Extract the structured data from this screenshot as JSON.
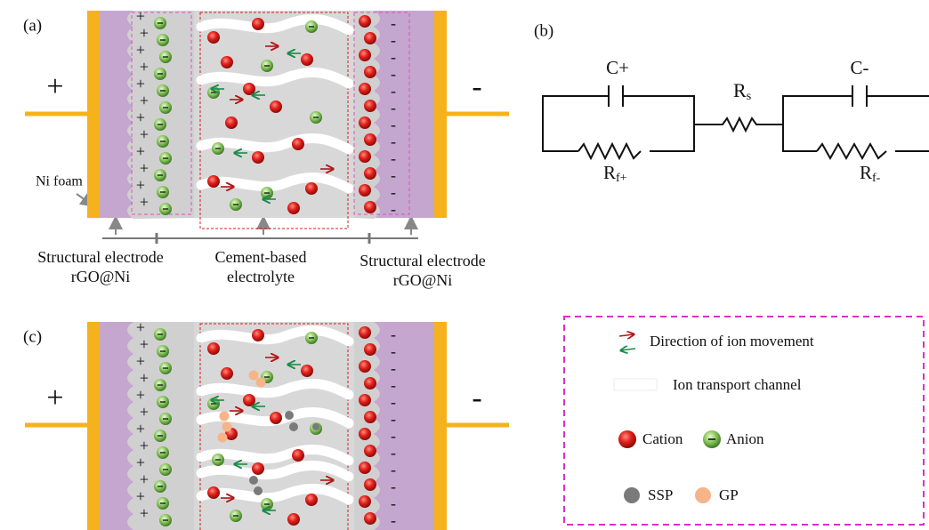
{
  "panel_a": {
    "label": "(a)",
    "positive_terminal": "+",
    "negative_terminal": "-",
    "ni_foam": "Ni foam",
    "left_electrode": [
      "Structural electrode",
      "rGO@Ni"
    ],
    "electrolyte": [
      "Cement-based",
      "electrolyte"
    ],
    "right_electrode": [
      "Structural electrode",
      "rGO@Ni"
    ],
    "positive_charge": "+",
    "negative_charge": "-"
  },
  "panel_b": {
    "label": "(b)",
    "c_plus": "C+",
    "c_minus": "C-",
    "rs": {
      "main": "R",
      "sub": "s"
    },
    "rf_plus": {
      "main": "R",
      "sub": "f+"
    },
    "rf_minus": {
      "main": "R",
      "sub": "f-"
    }
  },
  "panel_c": {
    "label": "(c)",
    "positive_terminal": "+",
    "negative_terminal": "-",
    "positive_charge": "+",
    "negative_charge": "-"
  },
  "legend": {
    "direction": "Direction of ion movement",
    "channel": "Ion transport channel",
    "cation": "Cation",
    "anion": "Anion",
    "ssp": "SSP",
    "gp": "GP"
  }
}
